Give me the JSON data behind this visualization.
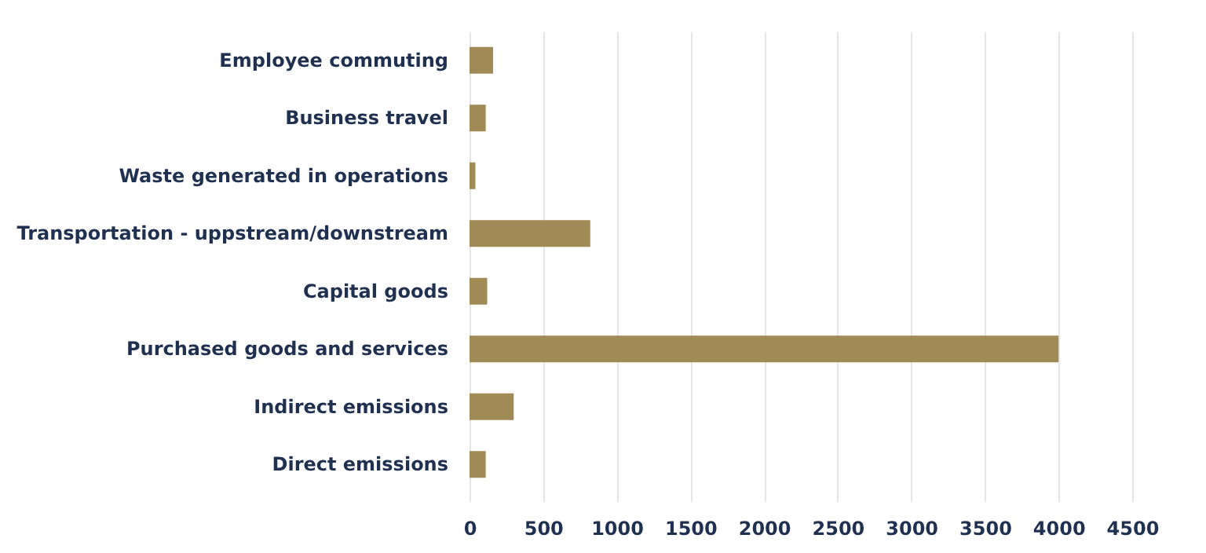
{
  "chart_data": {
    "type": "bar",
    "orientation": "horizontal",
    "categories": [
      "Employee commuting",
      "Business travel",
      "Waste generated in operations",
      "Transportation - uppstream/downstream",
      "Capital goods",
      "Purchased goods and services",
      "Indirect emissions",
      "Direct emissions"
    ],
    "values": [
      160,
      110,
      40,
      820,
      120,
      4000,
      300,
      110
    ],
    "color": "#a08a55",
    "xlim": [
      0,
      4500
    ],
    "xticks": [
      0,
      500,
      1000,
      1500,
      2000,
      2500,
      3000,
      3500,
      4000,
      4500
    ],
    "grid": "x"
  }
}
